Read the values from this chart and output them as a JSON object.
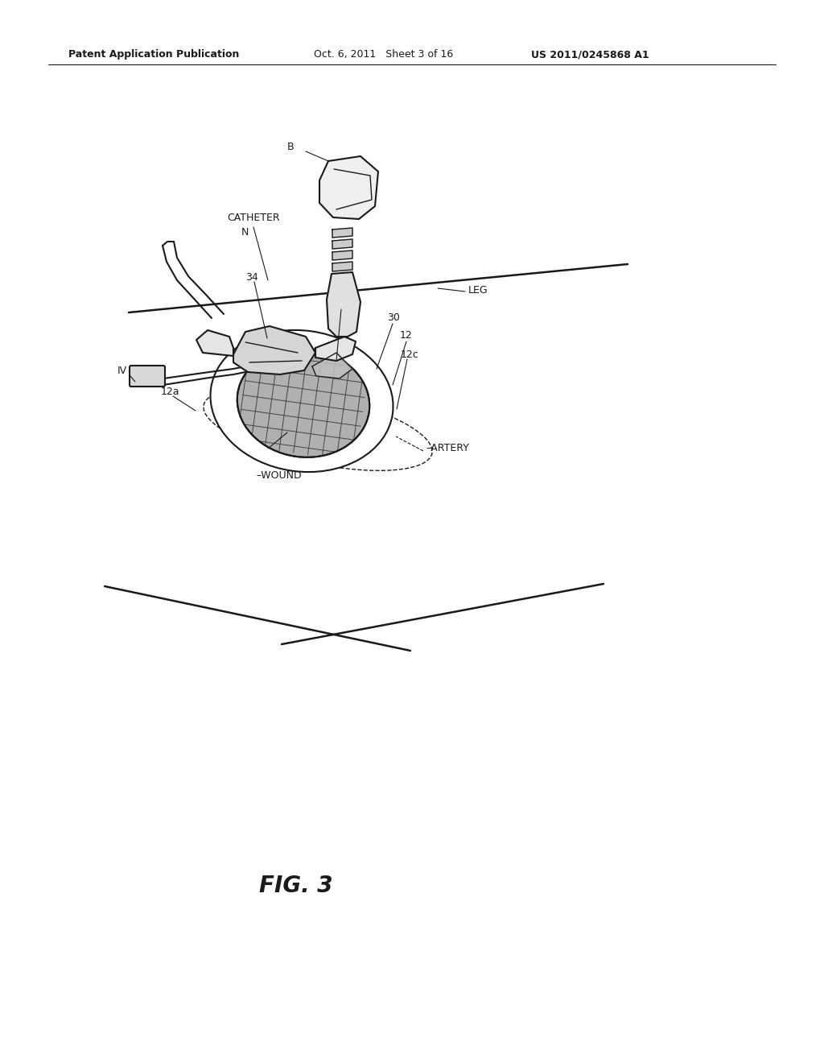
{
  "bg_color": "#ffffff",
  "line_color": "#1a1a1a",
  "header_left": "Patent Application Publication",
  "header_mid": "Oct. 6, 2011   Sheet 3 of 16",
  "header_right": "US 2011/0245868 A1",
  "fig_label": "FIG. 3"
}
